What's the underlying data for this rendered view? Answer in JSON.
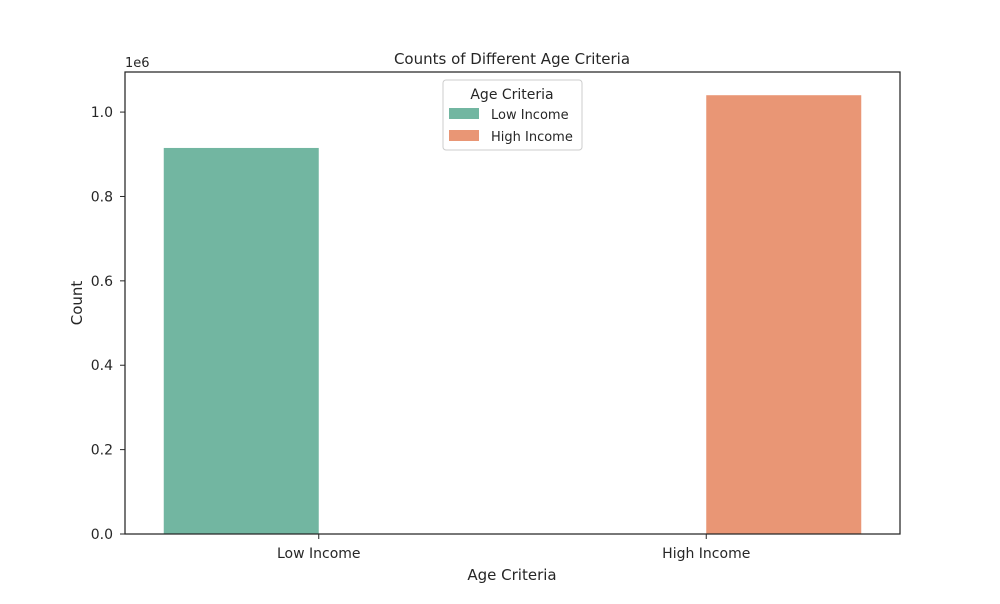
{
  "chart_data": {
    "type": "bar",
    "title": "Counts of Different Age Criteria",
    "xlabel": "Age Criteria",
    "ylabel": "Count",
    "y_offset_text": "1e6",
    "categories": [
      "Low Income",
      "High Income"
    ],
    "series": [
      {
        "name": "Low Income",
        "color": "#72b6a1",
        "values": [
          915000,
          null
        ]
      },
      {
        "name": "High Income",
        "color": "#e99675",
        "values": [
          null,
          1040000
        ]
      }
    ],
    "ylim": [
      0,
      1095000
    ],
    "y_ticks": [
      0,
      200000,
      400000,
      600000,
      800000,
      1000000
    ],
    "y_tick_labels": [
      "0.0",
      "0.2",
      "0.4",
      "0.6",
      "0.8",
      "1.0"
    ],
    "legend": {
      "title": "Age Criteria",
      "placement": "top-center",
      "entries": [
        "Low Income",
        "High Income"
      ]
    },
    "grid": false
  }
}
